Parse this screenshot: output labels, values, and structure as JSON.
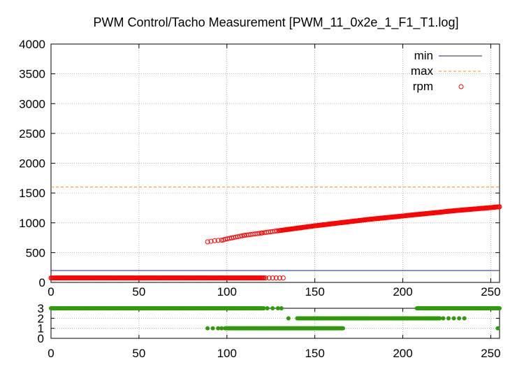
{
  "chart_data": [
    {
      "type": "scatter",
      "title": "PWM Control/Tacho Measurement [PWM_11_0x2e_1_F1_T1.log]",
      "xlabel": "",
      "ylabel": "",
      "xlim": [
        0,
        255
      ],
      "ylim": [
        0,
        4000
      ],
      "x_ticks": [
        "0",
        "50",
        "100",
        "150",
        "200",
        "250"
      ],
      "y_ticks": [
        "0",
        "500",
        "1000",
        "1500",
        "2000",
        "2500",
        "3000",
        "3500",
        "4000"
      ],
      "grid": true,
      "legend_position": "top-right",
      "series": [
        {
          "name": "min",
          "kind": "line",
          "color": "#1a237e",
          "y": 200
        },
        {
          "name": "max",
          "kind": "dashed-line",
          "color": "#ff8c00",
          "y": 1600
        },
        {
          "name": "rpm",
          "kind": "points",
          "color": "#ff0000",
          "low_points": {
            "x_range": [
              0,
              121
            ],
            "y": 75
          },
          "low_sparse_x": [
            122,
            124,
            126,
            128,
            130,
            132
          ],
          "high_sparse_points": [
            [
              89,
              680
            ],
            [
              91,
              690
            ],
            [
              93,
              700
            ],
            [
              95,
              705
            ],
            [
              97,
              710
            ],
            [
              98,
              712
            ]
          ],
          "high_curve": [
            [
              99,
              725
            ],
            [
              110,
              790
            ],
            [
              120,
              830
            ],
            [
              130,
              870
            ],
            [
              140,
              910
            ],
            [
              150,
              950
            ],
            [
              160,
              985
            ],
            [
              170,
              1020
            ],
            [
              180,
              1055
            ],
            [
              190,
              1085
            ],
            [
              200,
              1115
            ],
            [
              210,
              1145
            ],
            [
              220,
              1175
            ],
            [
              230,
              1205
            ],
            [
              240,
              1230
            ],
            [
              250,
              1255
            ],
            [
              255,
              1270
            ]
          ]
        }
      ]
    },
    {
      "type": "scatter",
      "title": "",
      "xlim": [
        0,
        255
      ],
      "ylim": [
        0,
        3
      ],
      "x_ticks": [
        "0",
        "50",
        "100",
        "150",
        "200",
        "250"
      ],
      "y_ticks": [
        "0",
        "1",
        "2",
        "3"
      ],
      "grid": true,
      "series": [
        {
          "name": "",
          "color": "#2f9a0a",
          "segments": [
            {
              "y": 3,
              "x_range": [
                0,
                121
              ]
            },
            {
              "y": 3,
              "x_sparse": [
                123,
                126,
                129,
                131
              ]
            },
            {
              "y": 3,
              "x_range": [
                208,
                255
              ]
            },
            {
              "y": 2,
              "x_sparse": [
                135
              ]
            },
            {
              "y": 2,
              "x_range": [
                140,
                221
              ]
            },
            {
              "y": 2,
              "x_sparse": [
                223,
                226,
                229,
                232,
                235
              ]
            },
            {
              "y": 1,
              "x_sparse": [
                89,
                92,
                95,
                97
              ]
            },
            {
              "y": 1,
              "x_range": [
                99,
                166
              ]
            },
            {
              "y": 1,
              "x_sparse": [
                254
              ]
            }
          ]
        }
      ]
    }
  ]
}
